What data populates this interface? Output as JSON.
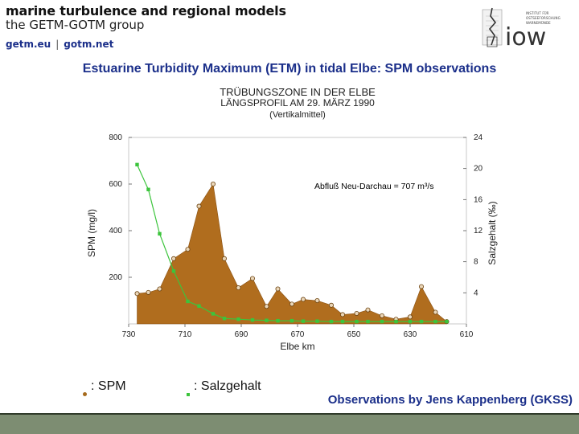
{
  "header": {
    "brand_title": "marine turbulence and regional models",
    "brand_subtitle": "the GETM-GOTM group",
    "link_1": "getm.eu",
    "link_sep": "|",
    "link_2": "gotm.net",
    "logo_text": "iow",
    "logo_small_lines": [
      "INSTITUT FÜR",
      "OSTSEEFORSCHUNG",
      "WARNEMÜNDE"
    ]
  },
  "page_title": "Estuarine Turbidity Maximum (ETM) in tidal Elbe: SPM observations",
  "chart_data": {
    "type": "area",
    "title": "TRÜBUNGSZONE IN DER ELBE",
    "subtitle_1": "LÄNGSPROFIL AM 29. MÄRZ 1990",
    "subtitle_2": "(Vertikalmittel)",
    "xlabel": "Elbe km",
    "ylabel": "SPM (mg/l)",
    "y2label": "Salzgehalt (‰)",
    "annotation": "Abfluß Neu-Darchau = 707 m³/s",
    "xlim": [
      730,
      610
    ],
    "ylim": [
      0,
      800
    ],
    "y2lim": [
      0,
      24
    ],
    "x_ticks": [
      "730",
      "710",
      "690",
      "670",
      "650",
      "630",
      "610"
    ],
    "y_ticks": [
      "200",
      "400",
      "600",
      "800"
    ],
    "y2_ticks": [
      "4",
      "8",
      "12",
      "16",
      "20",
      "24"
    ],
    "grid": false,
    "colors": {
      "spm_fill": "#b06d1e",
      "spm_marker": "#a66a1c",
      "salz_line": "#3cc43c",
      "annotation_text": "#000000"
    },
    "series": [
      {
        "name": "SPM",
        "axis": "left",
        "x": [
          727,
          723,
          719,
          714,
          709,
          705,
          700,
          696,
          691,
          686,
          681,
          677,
          672,
          668,
          663,
          658,
          654,
          649,
          645,
          640,
          635,
          630,
          626,
          621,
          617
        ],
        "values": [
          130,
          135,
          150,
          280,
          320,
          505,
          600,
          280,
          155,
          195,
          75,
          150,
          85,
          105,
          100,
          80,
          40,
          45,
          60,
          35,
          20,
          30,
          160,
          50,
          10
        ]
      },
      {
        "name": "Salzgehalt",
        "axis": "right",
        "x": [
          727,
          723,
          719,
          714,
          709,
          705,
          700,
          696,
          691,
          686,
          681,
          677,
          672,
          668,
          663,
          658,
          654,
          649,
          645,
          640,
          635,
          630,
          626,
          621,
          617
        ],
        "values": [
          20.5,
          17.3,
          11.6,
          6.8,
          2.9,
          2.3,
          1.3,
          0.7,
          0.6,
          0.5,
          0.45,
          0.4,
          0.4,
          0.35,
          0.35,
          0.3,
          0.3,
          0.3,
          0.3,
          0.3,
          0.3,
          0.3,
          0.3,
          0.3,
          0.3
        ]
      }
    ]
  },
  "legend": {
    "spm_label": ": SPM",
    "salz_label": ": Salzgehalt"
  },
  "credit": "Observations by Jens Kappenberg (GKSS)"
}
